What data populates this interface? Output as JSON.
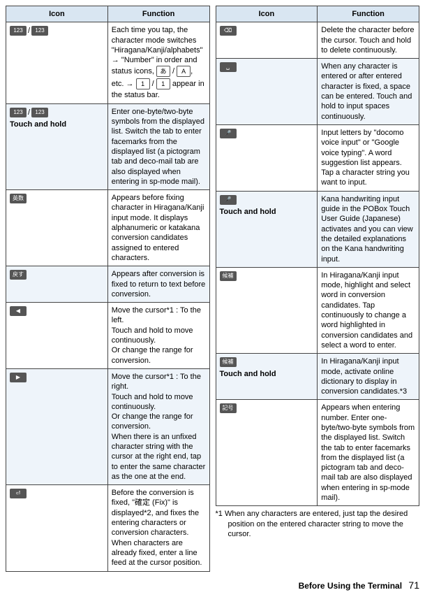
{
  "headers": {
    "icon": "Icon",
    "function": "Function"
  },
  "left": [
    {
      "icon_html": "<span class=\"key\">123</span><span class=\"sep\">/</span><span class=\"key\">123</span>",
      "icon_label": "mode-switch-key",
      "func": "Each time you tap, the character mode switches \"Hiragana/Kanji/alphabets\" → \"Number\" in order and status icons, <span class=\"key-outline\">あ</span> / <span class=\"key-outline\">A</span>, etc. → <span class=\"key-outline\">1</span> / <span class=\"key-outline\">1</span> appear in the status bar.",
      "alt": false
    },
    {
      "icon_html": "<span class=\"key\">123</span><span class=\"sep\">/</span><span class=\"key\">123</span><div class=\"touch-hold\">Touch and hold</div>",
      "icon_label": "symbol-list-key",
      "func": "Enter one-byte/two-byte symbols from the displayed list. Switch the tab to enter facemarks from the displayed list (a pictogram tab and deco-mail tab are also displayed when entering in sp-mode mail).",
      "alt": true
    },
    {
      "icon_html": "<span class=\"key\">英数<br>カナ</span>",
      "icon_label": "pre-fix-candidates-key",
      "func": "Appears before fixing character in Hiragana/Kanji input mode. It displays alphanumeric or katakana conversion candidates assigned to entered characters.",
      "alt": false
    },
    {
      "icon_html": "<span class=\"key\">戻す</span>",
      "icon_label": "undo-conversion-key",
      "func": "Appears after conversion is fixed to return to text before conversion.",
      "alt": true
    },
    {
      "icon_html": "<span class=\"key\">◀</span>",
      "icon_label": "cursor-left-key",
      "func": "Move the cursor*1 : To the left.<br>Touch and hold to move continuously.<br>Or change the range for conversion.",
      "alt": false
    },
    {
      "icon_html": "<span class=\"key\">▶</span>",
      "icon_label": "cursor-right-key",
      "func": "Move the cursor*1 : To the right.<br>Touch and hold to move continuously.<br>Or change the range for conversion.<br>When there is an unfixed character string with the cursor at the right end, tap to enter the same character as the one at the end.",
      "alt": true
    },
    {
      "icon_html": "<span class=\"key\">⏎</span>",
      "icon_label": "enter-fix-key",
      "func": "Before the conversion is fixed, \"確定 (Fix)\" is displayed*2, and fixes the entering characters or conversion characters.<br>When characters are already fixed, enter a line feed at the cursor position.",
      "alt": false
    }
  ],
  "right": [
    {
      "icon_html": "<span class=\"key\">⌫</span>",
      "icon_label": "delete-key",
      "func": "Delete the character before the cursor. Touch and hold to delete continuously.",
      "alt": false
    },
    {
      "icon_html": "<span class=\"key\">␣</span>",
      "icon_label": "space-key",
      "func": "When any character is entered or after entered character is fixed, a space can be entered. Touch and hold to input spaces continuously.",
      "alt": true
    },
    {
      "icon_html": "<span class=\"key\">🎤</span>",
      "icon_label": "voice-input-key",
      "func": "Input letters by \"docomo voice input\" or \"Google voice typing\". A word suggestion list appears. Tap a character string you want to input.",
      "alt": false
    },
    {
      "icon_html": "<span class=\"key\">🎤</span><div class=\"touch-hold\">Touch and hold</div>",
      "icon_label": "handwriting-guide-key",
      "func": "Kana handwriting input guide in the POBox Touch User Guide (Japanese) activates and you can view the detailed explanations on the Kana handwriting input.",
      "alt": true
    },
    {
      "icon_html": "<span class=\"key\">候補</span>",
      "icon_label": "candidate-select-key",
      "func": "In Hiragana/Kanji input mode, highlight and select word in conversion candidates. Tap continuously to change a word highlighted in conversion candidates and select a word to enter.",
      "alt": false
    },
    {
      "icon_html": "<span class=\"key\">候補</span><div class=\"touch-hold\">Touch and hold</div>",
      "icon_label": "online-dictionary-key",
      "func": "In Hiragana/Kanji input mode, activate online dictionary to display in conversion candidates.*3",
      "alt": true
    },
    {
      "icon_html": "<span class=\"key\">記号</span>",
      "icon_label": "number-symbol-key",
      "func": "Appears when entering number. Enter one-byte/two-byte symbols from the displayed list. Switch the tab to enter facemarks from the displayed list (a pictogram tab and deco-mail tab are also displayed when entering in sp-mode mail).",
      "alt": false
    }
  ],
  "footnote": "*1 When any characters are entered, just tap the desired position on the entered character string to move the cursor.",
  "footer_text": "Before Using the Terminal",
  "page_number": "71"
}
